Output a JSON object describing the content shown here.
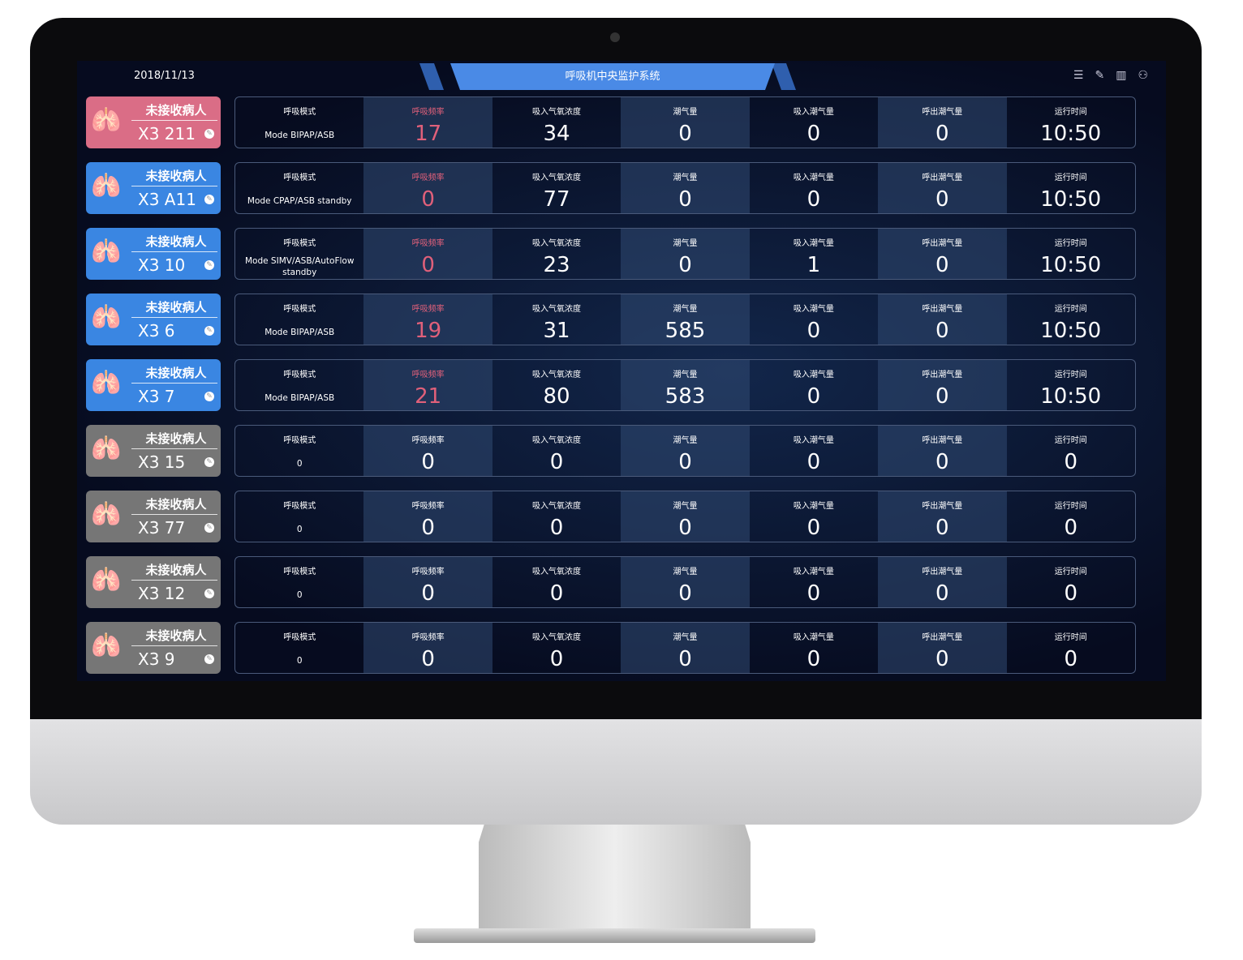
{
  "header": {
    "date": "2018/11/13",
    "title": "呼吸机中央监护系统",
    "icons": [
      "list-icon",
      "edit-icon",
      "layout-icon",
      "user-icon"
    ]
  },
  "colors": {
    "pink": "#da6d86",
    "blue": "#3a86e2",
    "gray": "#767676",
    "alert_label": "#e0607a"
  },
  "labels": [
    "呼吸模式",
    "呼吸频率",
    "吸入气氧浓度",
    "潮气量",
    "吸入潮气量",
    "呼出潮气量",
    "运行时间"
  ],
  "rows": [
    {
      "status": "未接收病人",
      "bed": "X3 211",
      "color": "pink",
      "alert": true,
      "values": [
        "Mode BIPAP/ASB",
        "17",
        "34",
        "0",
        "0",
        "0",
        "10:50"
      ]
    },
    {
      "status": "未接收病人",
      "bed": "X3 A11",
      "color": "blue",
      "alert": true,
      "values": [
        "Mode CPAP/ASB standby",
        "0",
        "77",
        "0",
        "0",
        "0",
        "10:50"
      ]
    },
    {
      "status": "未接收病人",
      "bed": "X3 10",
      "color": "blue",
      "alert": true,
      "values": [
        "Mode SIMV/ASB/AutoFlow standby",
        "0",
        "23",
        "0",
        "1",
        "0",
        "10:50"
      ]
    },
    {
      "status": "未接收病人",
      "bed": "X3 6",
      "color": "blue",
      "alert": true,
      "values": [
        "Mode BIPAP/ASB",
        "19",
        "31",
        "585",
        "0",
        "0",
        "10:50"
      ]
    },
    {
      "status": "未接收病人",
      "bed": "X3 7",
      "color": "blue",
      "alert": true,
      "values": [
        "Mode BIPAP/ASB",
        "21",
        "80",
        "583",
        "0",
        "0",
        "10:50"
      ]
    },
    {
      "status": "未接收病人",
      "bed": "X3 15",
      "color": "gray",
      "alert": false,
      "values": [
        "0",
        "0",
        "0",
        "0",
        "0",
        "0",
        "0"
      ]
    },
    {
      "status": "未接收病人",
      "bed": "X3 77",
      "color": "gray",
      "alert": false,
      "values": [
        "0",
        "0",
        "0",
        "0",
        "0",
        "0",
        "0"
      ]
    },
    {
      "status": "未接收病人",
      "bed": "X3 12",
      "color": "gray",
      "alert": false,
      "values": [
        "0",
        "0",
        "0",
        "0",
        "0",
        "0",
        "0"
      ]
    },
    {
      "status": "未接收病人",
      "bed": "X3 9",
      "color": "gray",
      "alert": false,
      "values": [
        "0",
        "0",
        "0",
        "0",
        "0",
        "0",
        "0"
      ]
    }
  ]
}
